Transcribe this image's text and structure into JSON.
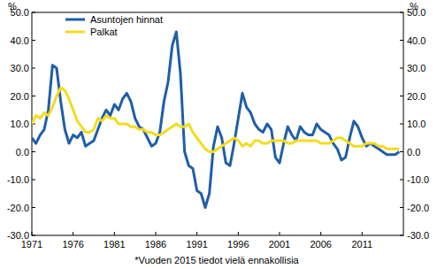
{
  "chart_data": {
    "type": "line",
    "y_label": "%",
    "y2_label": "%",
    "footnote": "*Vuoden 2015 tiedot vielä ennakollisia",
    "x": [
      1971,
      1971.5,
      1972,
      1972.5,
      1973,
      1973.5,
      1974,
      1974.5,
      1975,
      1975.5,
      1976,
      1976.5,
      1977,
      1977.5,
      1978,
      1978.5,
      1979,
      1979.5,
      1980,
      1980.5,
      1981,
      1981.5,
      1982,
      1982.5,
      1983,
      1983.5,
      1984,
      1984.5,
      1985,
      1985.5,
      1986,
      1986.5,
      1987,
      1987.5,
      1988,
      1988.5,
      1989,
      1989.5,
      1990,
      1990.5,
      1991,
      1991.5,
      1992,
      1992.5,
      1993,
      1993.5,
      1994,
      1994.5,
      1995,
      1995.5,
      1996,
      1996.5,
      1997,
      1997.5,
      1998,
      1998.5,
      1999,
      1999.5,
      2000,
      2000.5,
      2001,
      2001.5,
      2002,
      2002.5,
      2003,
      2003.5,
      2004,
      2004.5,
      2005,
      2005.5,
      2006,
      2006.5,
      2007,
      2007.5,
      2008,
      2008.5,
      2009,
      2009.5,
      2010,
      2010.5,
      2011,
      2011.5,
      2012,
      2012.5,
      2013,
      2013.5,
      2014,
      2014.5,
      2015,
      2015.5
    ],
    "series": [
      {
        "name": "Asuntojen hinnat",
        "color": "#1f5ea8",
        "values": [
          5,
          3,
          6,
          8,
          15,
          31,
          30,
          18,
          8,
          3,
          6,
          5,
          7,
          2,
          3,
          4,
          8,
          12,
          15,
          13,
          17,
          15,
          19,
          21,
          18,
          12,
          9,
          8,
          5,
          2,
          3,
          7,
          18,
          25,
          38,
          43,
          28,
          0,
          -5,
          -6,
          -14,
          -15,
          -20,
          -15,
          2,
          9,
          5,
          -4,
          -5,
          3,
          12,
          21,
          16,
          14,
          10,
          8,
          7,
          10,
          8,
          -2,
          -4,
          3,
          9,
          6,
          4,
          9,
          7,
          6,
          6,
          10,
          8,
          7,
          6,
          3,
          1,
          -3,
          -2,
          5,
          11,
          9,
          5,
          2,
          3,
          2,
          1,
          0,
          -1,
          -1,
          -1,
          0
        ]
      },
      {
        "name": "Palkat",
        "color": "#f3dc1f",
        "values": [
          10,
          13,
          12,
          14,
          13,
          16,
          20,
          23,
          22,
          19,
          15,
          11,
          9,
          7,
          7,
          8,
          12,
          11,
          13,
          12,
          12,
          10,
          10,
          10,
          9,
          9,
          8,
          8,
          7,
          7,
          6,
          6,
          7,
          8,
          9,
          10,
          9,
          9,
          10,
          7,
          5,
          3,
          1,
          0,
          0,
          1,
          2,
          3,
          4,
          5,
          4,
          2,
          3,
          2,
          4,
          4,
          3,
          3,
          4,
          4,
          4,
          4,
          3,
          3,
          4,
          4,
          4,
          4,
          4,
          4,
          3,
          3,
          3,
          4,
          5,
          5,
          4,
          3,
          2,
          2,
          2,
          3,
          3,
          3,
          2,
          2,
          1,
          1,
          1,
          1
        ]
      }
    ],
    "xlim": [
      1971,
      2016
    ],
    "xticks": [
      1971,
      1976,
      1981,
      1986,
      1991,
      1996,
      2001,
      2006,
      2011
    ],
    "ylim": [
      -30,
      50
    ],
    "yticks": [
      {
        "value": -30,
        "label": "-30.0"
      },
      {
        "value": -20,
        "label": "-20.0"
      },
      {
        "value": -10,
        "label": "-10.0"
      },
      {
        "value": 0,
        "label": "0.0"
      },
      {
        "value": 10,
        "label": "10.0"
      },
      {
        "value": 20,
        "label": "20.0"
      },
      {
        "value": 30,
        "label": "30.0"
      },
      {
        "value": 40,
        "label": "40.0"
      },
      {
        "value": 50,
        "label": "50.0"
      }
    ],
    "y2lim": [
      -30,
      50
    ],
    "y2ticks": [
      {
        "value": -30,
        "label": "-30.0"
      },
      {
        "value": -20,
        "label": "-20.0"
      },
      {
        "value": -10,
        "label": "-10.0"
      },
      {
        "value": 0,
        "label": "0.0"
      },
      {
        "value": 10,
        "label": "10.0"
      },
      {
        "value": 20,
        "label": "20.0"
      },
      {
        "value": 30,
        "label": "30.0"
      },
      {
        "value": 40,
        "label": "40.0"
      },
      {
        "value": 50,
        "label": "50.0"
      }
    ],
    "grid": false,
    "legend": "upper left"
  }
}
